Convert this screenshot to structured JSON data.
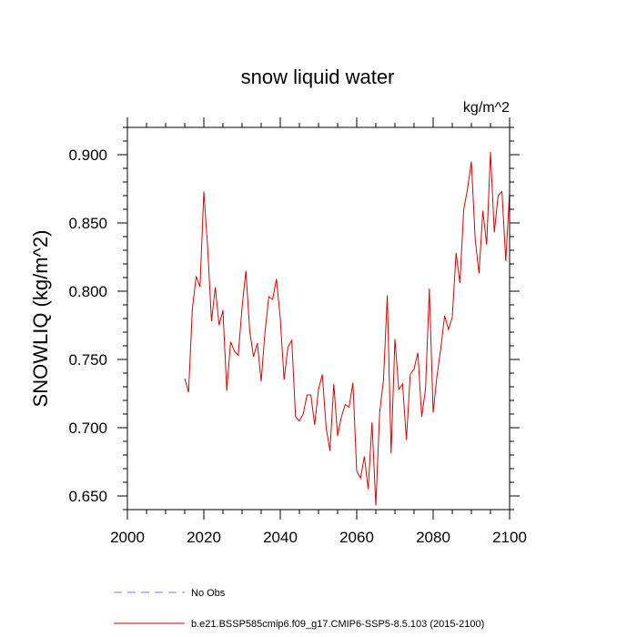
{
  "chart_data": {
    "type": "line",
    "title": "snow liquid water",
    "units": "kg/m^2",
    "ylabel": "SNOWLIQ  (kg/m^2)",
    "xlabel": "",
    "xlim": [
      2000,
      2100
    ],
    "ylim": [
      0.64,
      0.92
    ],
    "xticks": [
      2000,
      2020,
      2040,
      2060,
      2080,
      2100
    ],
    "xtick_labels": [
      "2000",
      "2020",
      "2040",
      "2060",
      "2080",
      "2100"
    ],
    "yticks": [
      0.65,
      0.7,
      0.75,
      0.8,
      0.85,
      0.9
    ],
    "ytick_labels": [
      "0.650",
      "0.700",
      "0.750",
      "0.800",
      "0.850",
      "0.900"
    ],
    "legend": [
      {
        "label": "No Obs",
        "color": "#7b7bdb",
        "style": "dashed"
      },
      {
        "label": "b.e21.BSSP585cmip6.f09_g17.CMIP6-SSP5-8.5.103 (2015-2100)",
        "color": "#e00000",
        "style": "solid"
      }
    ],
    "series": [
      {
        "name": "b.e21.BSSP585cmip6.f09_g17.CMIP6-SSP5-8.5.103 (2015-2100)",
        "color": "#e00000",
        "x": [
          2015,
          2016,
          2017,
          2018,
          2019,
          2020,
          2021,
          2022,
          2023,
          2024,
          2025,
          2026,
          2027,
          2028,
          2029,
          2030,
          2031,
          2032,
          2033,
          2034,
          2035,
          2036,
          2037,
          2038,
          2039,
          2040,
          2041,
          2042,
          2043,
          2044,
          2045,
          2046,
          2047,
          2048,
          2049,
          2050,
          2051,
          2052,
          2053,
          2054,
          2055,
          2056,
          2057,
          2058,
          2059,
          2060,
          2061,
          2062,
          2063,
          2064,
          2065,
          2066,
          2067,
          2068,
          2069,
          2070,
          2071,
          2072,
          2073,
          2074,
          2075,
          2076,
          2077,
          2078,
          2079,
          2080,
          2081,
          2082,
          2083,
          2084,
          2085,
          2086,
          2087,
          2088,
          2089,
          2090,
          2091,
          2092,
          2093,
          2094,
          2095,
          2096,
          2097,
          2098,
          2099,
          2100
        ],
        "values": [
          0.736,
          0.726,
          0.787,
          0.811,
          0.803,
          0.873,
          0.832,
          0.778,
          0.803,
          0.775,
          0.786,
          0.727,
          0.763,
          0.756,
          0.753,
          0.788,
          0.815,
          0.771,
          0.752,
          0.762,
          0.734,
          0.77,
          0.796,
          0.794,
          0.809,
          0.78,
          0.735,
          0.759,
          0.764,
          0.708,
          0.705,
          0.71,
          0.724,
          0.724,
          0.702,
          0.728,
          0.739,
          0.7,
          0.683,
          0.732,
          0.694,
          0.708,
          0.717,
          0.715,
          0.733,
          0.668,
          0.663,
          0.679,
          0.655,
          0.704,
          0.643,
          0.711,
          0.735,
          0.797,
          0.681,
          0.765,
          0.728,
          0.732,
          0.691,
          0.739,
          0.743,
          0.755,
          0.708,
          0.728,
          0.802,
          0.711,
          0.738,
          0.758,
          0.782,
          0.772,
          0.781,
          0.828,
          0.806,
          0.86,
          0.875,
          0.895,
          0.838,
          0.813,
          0.859,
          0.834,
          0.902,
          0.843,
          0.87,
          0.873,
          0.822,
          0.873
        ]
      }
    ]
  }
}
